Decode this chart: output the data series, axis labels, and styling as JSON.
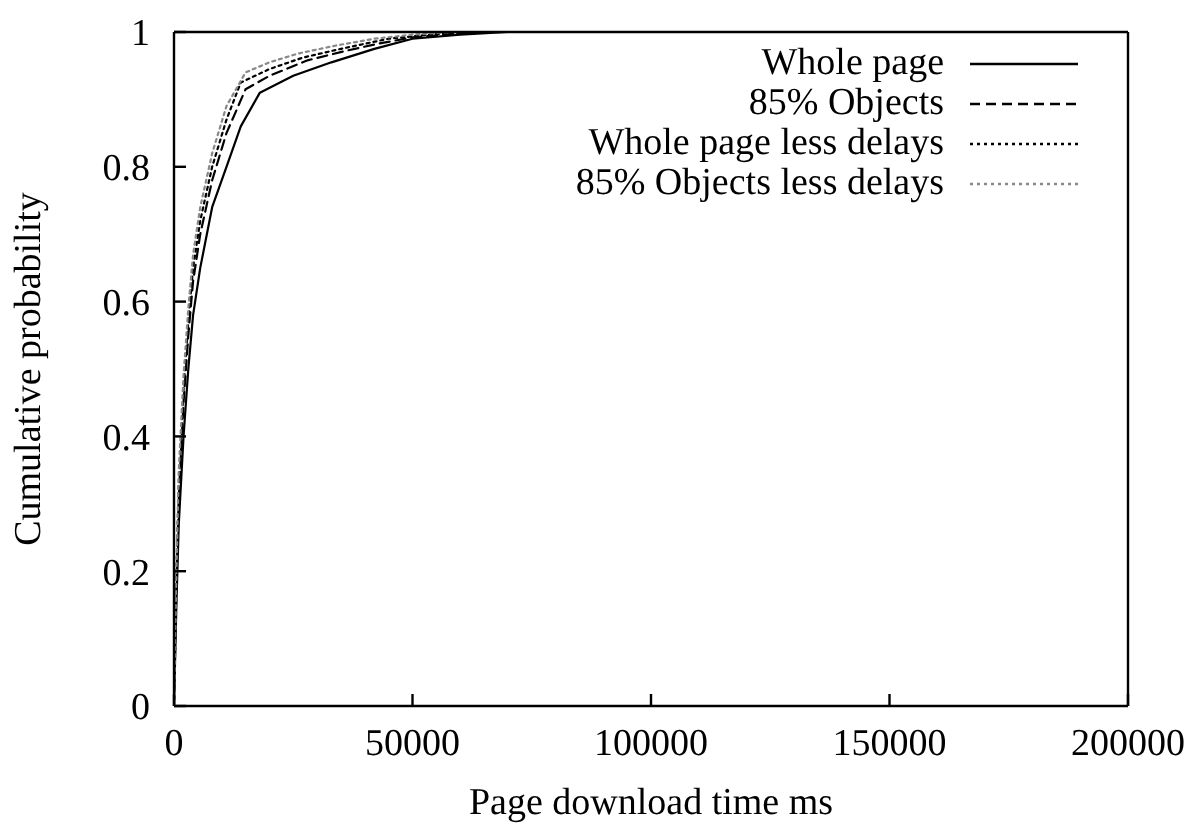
{
  "chart_data": {
    "type": "line",
    "xlabel": "Page download time ms",
    "ylabel": "Cumulative probability",
    "xlim": [
      0,
      200000
    ],
    "xticks": [
      0,
      50000,
      100000,
      150000,
      200000
    ],
    "ylim": [
      0,
      1
    ],
    "yticks": [
      0,
      0.2,
      0.4,
      0.6,
      0.8,
      1
    ],
    "legend": "top right",
    "marker": "none",
    "series": [
      {
        "name": "Whole page",
        "color": "#000000",
        "line_style": "solid",
        "x": [
          0,
          500,
          1000,
          2000,
          3000,
          4000,
          5500,
          8000,
          11000,
          14000,
          18000,
          25000,
          33000,
          42000,
          50000,
          60000,
          70000
        ],
        "values": [
          0,
          0.15,
          0.27,
          0.4,
          0.5,
          0.58,
          0.65,
          0.74,
          0.8,
          0.86,
          0.91,
          0.935,
          0.955,
          0.975,
          0.99,
          0.996,
          1
        ]
      },
      {
        "name": "85% Objects",
        "color": "#000000",
        "line_style": "dashed",
        "x": [
          0,
          500,
          1000,
          2000,
          3000,
          4000,
          5500,
          8000,
          11000,
          15000,
          20000,
          28000,
          36000,
          43000,
          50000,
          60000,
          65000
        ],
        "values": [
          0,
          0.18,
          0.31,
          0.45,
          0.55,
          0.63,
          0.7,
          0.78,
          0.85,
          0.915,
          0.935,
          0.958,
          0.972,
          0.983,
          0.992,
          0.998,
          1
        ]
      },
      {
        "name": "Whole page less delays",
        "color": "#000000",
        "line_style": "dotted",
        "x": [
          0,
          500,
          1000,
          2000,
          3000,
          4000,
          5500,
          8000,
          11000,
          14000,
          20000,
          27000,
          35000,
          45000,
          55000,
          62000
        ],
        "values": [
          0,
          0.19,
          0.33,
          0.47,
          0.57,
          0.65,
          0.72,
          0.8,
          0.87,
          0.925,
          0.945,
          0.962,
          0.975,
          0.99,
          0.997,
          1
        ]
      },
      {
        "name": "85% Objects less delays",
        "color": "#888888",
        "line_style": "dotted",
        "x": [
          0,
          500,
          1000,
          2000,
          3000,
          4000,
          5500,
          8000,
          11000,
          15000,
          20000,
          26000,
          34000,
          42000,
          50000,
          58000
        ],
        "values": [
          0,
          0.2,
          0.35,
          0.49,
          0.59,
          0.67,
          0.74,
          0.82,
          0.89,
          0.94,
          0.955,
          0.968,
          0.98,
          0.99,
          0.996,
          1
        ]
      }
    ]
  }
}
